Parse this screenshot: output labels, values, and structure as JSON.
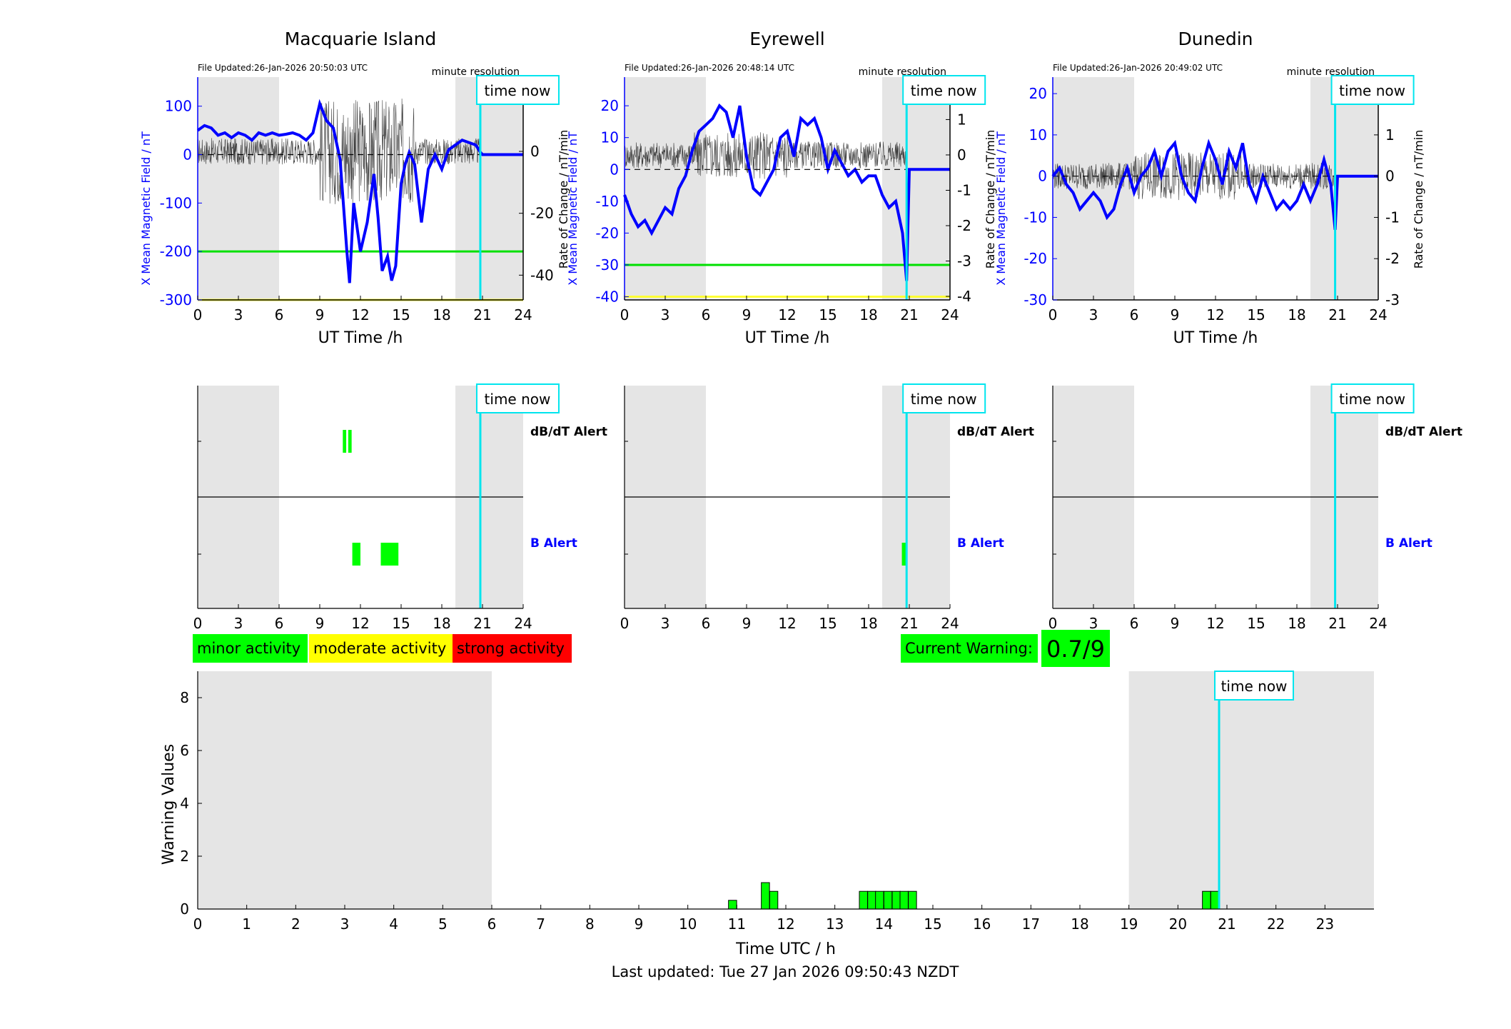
{
  "chart_data": [
    {
      "type": "line",
      "title": "Macquarie Island",
      "file_updated": "File Updated:26-Jan-2026 20:50:03 UTC",
      "resolution_note": "minute resolution",
      "xlabel": "UT Time /h",
      "ylabel_left": "X Mean Magnetic Field / nT",
      "ylabel_right": "Rate of Change / nT/min",
      "xlim": [
        0,
        24
      ],
      "ylim_left": [
        -300,
        160
      ],
      "ylim_right": [
        -48,
        24
      ],
      "xticks": [
        0,
        3,
        6,
        9,
        12,
        15,
        18,
        21,
        24
      ],
      "yticks_left": [
        100,
        0,
        -100,
        -200,
        -300
      ],
      "yticks_right": [
        20,
        0,
        -20,
        -40
      ],
      "night_shading": [
        [
          0,
          6
        ],
        [
          19,
          24
        ]
      ],
      "time_now": 20.84,
      "time_now_label": "time now",
      "thresholds": [
        {
          "value": -200,
          "color": "#00e000"
        },
        {
          "value": -300,
          "color": "#ffff33"
        }
      ],
      "series": [
        {
          "color": "#0000ff",
          "x": [
            0,
            0.5,
            1,
            1.5,
            2,
            2.5,
            3,
            3.5,
            4,
            4.5,
            5,
            5.5,
            6,
            6.5,
            7,
            7.5,
            8,
            8.5,
            9,
            9.5,
            10,
            10.5,
            11,
            11.2,
            11.5,
            12,
            12.5,
            13,
            13.3,
            13.6,
            14,
            14.3,
            14.6,
            15,
            15.3,
            15.6,
            16,
            16.5,
            17,
            17.5,
            18,
            18.5,
            19,
            19.5,
            20,
            20.5,
            20.84,
            21,
            22,
            23,
            24
          ],
          "y": [
            50,
            60,
            55,
            40,
            45,
            35,
            45,
            40,
            30,
            45,
            40,
            45,
            40,
            42,
            45,
            40,
            30,
            45,
            105,
            70,
            55,
            -10,
            -200,
            -265,
            -100,
            -200,
            -140,
            -40,
            -130,
            -240,
            -210,
            -260,
            -230,
            -60,
            -20,
            5,
            -20,
            -140,
            -30,
            0,
            -30,
            10,
            20,
            30,
            25,
            20,
            5,
            0,
            0,
            0,
            0
          ]
        },
        {
          "color": "#000000",
          "dash": "dashed",
          "x": [
            0,
            20.84
          ],
          "y": [
            0,
            0
          ]
        }
      ]
    },
    {
      "type": "line",
      "title": "Eyrewell",
      "file_updated": "File Updated:26-Jan-2026 20:48:14 UTC",
      "resolution_note": "minute resolution",
      "xlabel": "UT Time /h",
      "ylabel_left": "X Mean Magnetic Field / nT",
      "ylabel_right": "Rate of Change / nT/min",
      "xlim": [
        0,
        24
      ],
      "ylim_left": [
        -41,
        29
      ],
      "ylim_right": [
        -4.1,
        2.2
      ],
      "xticks": [
        0,
        3,
        6,
        9,
        12,
        15,
        18,
        21,
        24
      ],
      "yticks_left": [
        20,
        10,
        0,
        -10,
        -20,
        -30,
        -40
      ],
      "yticks_right": [
        2,
        1,
        0,
        -1,
        -2,
        -3,
        -4
      ],
      "night_shading": [
        [
          0,
          6
        ],
        [
          19,
          24
        ]
      ],
      "time_now": 20.8,
      "time_now_label": "time now",
      "thresholds": [
        {
          "value": -30,
          "color": "#00e000"
        },
        {
          "value": -40,
          "color": "#ffff33"
        }
      ],
      "series": [
        {
          "color": "#0000ff",
          "x": [
            0,
            0.5,
            1,
            1.5,
            2,
            2.5,
            3,
            3.5,
            4,
            4.5,
            5,
            5.5,
            6,
            6.5,
            7,
            7.5,
            8,
            8.5,
            9,
            9.5,
            10,
            10.5,
            11,
            11.5,
            12,
            12.5,
            13,
            13.5,
            14,
            14.5,
            15,
            15.5,
            16,
            16.5,
            17,
            17.5,
            18,
            18.5,
            19,
            19.5,
            20,
            20.5,
            20.8,
            21,
            22,
            23,
            24
          ],
          "y": [
            -8,
            -14,
            -18,
            -16,
            -20,
            -16,
            -12,
            -14,
            -6,
            -2,
            6,
            12,
            14,
            16,
            20,
            18,
            10,
            20,
            4,
            -6,
            -8,
            -4,
            0,
            10,
            12,
            4,
            16,
            14,
            16,
            10,
            0,
            6,
            2,
            -2,
            0,
            -4,
            -2,
            -2,
            -8,
            -12,
            -10,
            -20,
            -35,
            0,
            0,
            0,
            0
          ]
        },
        {
          "color": "#000000",
          "dash": "dashed",
          "x": [
            0,
            20.8
          ],
          "y": [
            0,
            0
          ]
        }
      ]
    },
    {
      "type": "line",
      "title": "Dunedin",
      "file_updated": "File Updated:26-Jan-2026 20:49:02 UTC",
      "resolution_note": "minute resolution",
      "xlabel": "UT Time /h",
      "ylabel_left": "X Mean Magnetic Field / nT",
      "ylabel_right": "Rate of Change / nT/min",
      "xlim": [
        0,
        24
      ],
      "ylim_left": [
        -30,
        24
      ],
      "ylim_right": [
        -3,
        2.4
      ],
      "xticks": [
        0,
        3,
        6,
        9,
        12,
        15,
        18,
        21,
        24
      ],
      "yticks_left": [
        20,
        10,
        0,
        -10,
        -20,
        -30
      ],
      "yticks_right": [
        2,
        1,
        0,
        -1,
        -2,
        -3
      ],
      "night_shading": [
        [
          0,
          6
        ],
        [
          19,
          24
        ]
      ],
      "time_now": 20.82,
      "time_now_label": "time now",
      "series": [
        {
          "color": "#0000ff",
          "x": [
            0,
            0.5,
            1,
            1.5,
            2,
            2.5,
            3,
            3.5,
            4,
            4.5,
            5,
            5.5,
            6,
            6.5,
            7,
            7.5,
            8,
            8.5,
            9,
            9.5,
            10,
            10.5,
            11,
            11.5,
            12,
            12.5,
            13,
            13.5,
            14,
            14.5,
            15,
            15.5,
            16,
            16.5,
            17,
            17.5,
            18,
            18.5,
            19,
            19.5,
            20,
            20.5,
            20.82,
            21,
            22,
            23,
            24
          ],
          "y": [
            0,
            2,
            -2,
            -4,
            -8,
            -6,
            -4,
            -6,
            -10,
            -8,
            -2,
            2,
            -4,
            0,
            2,
            6,
            0,
            6,
            8,
            0,
            -4,
            -6,
            2,
            8,
            4,
            -2,
            6,
            2,
            8,
            -2,
            -6,
            0,
            -4,
            -8,
            -6,
            -8,
            -6,
            -2,
            -6,
            -2,
            4,
            -2,
            -13,
            0,
            0,
            0,
            0
          ]
        },
        {
          "color": "#000000",
          "dash": "dashed",
          "x": [
            0,
            20.82
          ],
          "y": [
            0,
            0
          ]
        }
      ]
    },
    {
      "type": "bar",
      "title": "",
      "station": "Macquarie Island",
      "xlim": [
        0,
        24
      ],
      "xticks": [
        0,
        3,
        6,
        9,
        12,
        15,
        18,
        21,
        24
      ],
      "rows": [
        "dB/dT Alert",
        "B Alert"
      ],
      "night_shading": [
        [
          0,
          6
        ],
        [
          19,
          24
        ]
      ],
      "time_now": 20.84,
      "time_now_label": "time now",
      "alerts": [
        {
          "row": "dB/dT Alert",
          "start": 10.7,
          "end": 10.95,
          "color": "#00ff00"
        },
        {
          "row": "dB/dT Alert",
          "start": 11.1,
          "end": 11.35,
          "color": "#00ff00"
        },
        {
          "row": "B Alert",
          "start": 11.4,
          "end": 12.0,
          "color": "#00ff00"
        },
        {
          "row": "B Alert",
          "start": 13.5,
          "end": 14.8,
          "color": "#00ff00"
        }
      ]
    },
    {
      "type": "bar",
      "title": "",
      "station": "Eyrewell",
      "xlim": [
        0,
        24
      ],
      "xticks": [
        0,
        3,
        6,
        9,
        12,
        15,
        18,
        21,
        24
      ],
      "rows": [
        "dB/dT Alert",
        "B Alert"
      ],
      "night_shading": [
        [
          0,
          6
        ],
        [
          19,
          24
        ]
      ],
      "time_now": 20.8,
      "time_now_label": "time now",
      "alerts": [
        {
          "row": "B Alert",
          "start": 20.45,
          "end": 20.85,
          "color": "#00ff00"
        }
      ]
    },
    {
      "type": "bar",
      "title": "",
      "station": "Dunedin",
      "xlim": [
        0,
        24
      ],
      "xticks": [
        0,
        3,
        6,
        9,
        12,
        15,
        18,
        21,
        24
      ],
      "rows": [
        "dB/dT Alert",
        "B Alert"
      ],
      "night_shading": [
        [
          0,
          6
        ],
        [
          19,
          24
        ]
      ],
      "time_now": 20.82,
      "time_now_label": "time now",
      "alerts": []
    },
    {
      "type": "bar",
      "title": "",
      "xlabel": "Time UTC / h",
      "ylabel": "Warning Values",
      "xlim": [
        0,
        24
      ],
      "ylim": [
        0,
        9
      ],
      "xticks": [
        0,
        1,
        2,
        3,
        4,
        5,
        6,
        7,
        8,
        9,
        10,
        11,
        12,
        13,
        14,
        15,
        16,
        17,
        18,
        19,
        20,
        21,
        22,
        23
      ],
      "yticks": [
        0,
        2,
        4,
        6,
        8
      ],
      "night_shading": [
        [
          0,
          6
        ],
        [
          19,
          24
        ]
      ],
      "time_now": 20.84,
      "time_now_label": "time now",
      "bar_width": 0.1667,
      "bars": [
        {
          "x": 10.83,
          "value": 0.33
        },
        {
          "x": 11.5,
          "value": 1.0
        },
        {
          "x": 11.67,
          "value": 0.67
        },
        {
          "x": 13.5,
          "value": 0.67
        },
        {
          "x": 13.67,
          "value": 0.67
        },
        {
          "x": 13.83,
          "value": 0.67
        },
        {
          "x": 14.0,
          "value": 0.67
        },
        {
          "x": 14.17,
          "value": 0.67
        },
        {
          "x": 14.33,
          "value": 0.67
        },
        {
          "x": 14.5,
          "value": 0.67
        },
        {
          "x": 20.5,
          "value": 0.67
        },
        {
          "x": 20.67,
          "value": 0.67
        }
      ]
    }
  ],
  "legend": [
    {
      "label": "minor activity",
      "color": "#00ff00"
    },
    {
      "label": "moderate activity",
      "color": "#ffff00"
    },
    {
      "label": "strong activity",
      "color": "#ff0000"
    }
  ],
  "current_warning": {
    "label": "Current Warning:",
    "value": "0.7/9",
    "color": "#00ff00"
  },
  "footer": "Last updated: Tue 27 Jan 2026 09:50:43 NZDT"
}
